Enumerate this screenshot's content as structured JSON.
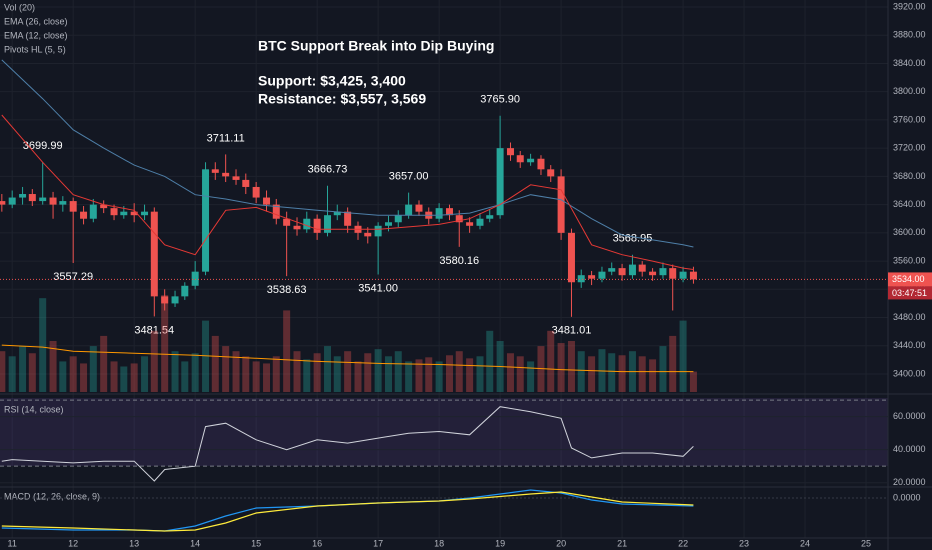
{
  "chart_data": {
    "type": "candlestick",
    "up_color": "#26a69a",
    "down_color": "#ef5350",
    "x": [
      10.83,
      11,
      11.17,
      11.33,
      11.5,
      11.67,
      11.83,
      12,
      12.17,
      12.33,
      12.5,
      12.67,
      12.83,
      13,
      13.17,
      13.33,
      13.5,
      13.67,
      13.83,
      14,
      14.17,
      14.33,
      14.5,
      14.67,
      14.83,
      15,
      15.17,
      15.33,
      15.5,
      15.67,
      15.83,
      16,
      16.17,
      16.33,
      16.5,
      16.67,
      16.83,
      17,
      17.17,
      17.33,
      17.5,
      17.67,
      17.83,
      18,
      18.17,
      18.33,
      18.5,
      18.67,
      18.83,
      19,
      19.17,
      19.33,
      19.5,
      19.67,
      19.83,
      20,
      20.17,
      20.33,
      20.5,
      20.67,
      20.83,
      21,
      21.17,
      21.33,
      21.5,
      21.67,
      21.83,
      22,
      22.17
    ],
    "open": [
      3645,
      3640,
      3650,
      3655,
      3645,
      3650,
      3640,
      3645,
      3630,
      3620,
      3640,
      3635,
      3625,
      3630,
      3625,
      3630,
      3510,
      3500,
      3510,
      3525,
      3545,
      3690,
      3685,
      3680,
      3675,
      3665,
      3650,
      3640,
      3620,
      3610,
      3605,
      3620,
      3600,
      3625,
      3630,
      3610,
      3600,
      3595,
      3610,
      3615,
      3625,
      3640,
      3630,
      3620,
      3635,
      3625,
      3615,
      3610,
      3620,
      3625,
      3720,
      3710,
      3700,
      3705,
      3690,
      3680,
      3600,
      3530,
      3540,
      3535,
      3545,
      3550,
      3540,
      3555,
      3545,
      3540,
      3550,
      3535,
      3545
    ],
    "high": [
      3655,
      3660,
      3665,
      3662,
      3699.99,
      3658,
      3652,
      3650,
      3638,
      3648,
      3646,
      3640,
      3638,
      3642,
      3640,
      3636,
      3520,
      3518,
      3530,
      3560,
      3700,
      3700,
      3711.11,
      3690,
      3684,
      3672,
      3660,
      3648,
      3630,
      3622,
      3630,
      3626,
      3666.73,
      3640,
      3636,
      3616,
      3608,
      3615,
      3624,
      3632,
      3657,
      3646,
      3636,
      3642,
      3640,
      3632,
      3622,
      3628,
      3634,
      3765.9,
      3728,
      3716,
      3712,
      3710,
      3696,
      3690,
      3606,
      3548,
      3546,
      3552,
      3558,
      3556,
      3568.95,
      3560,
      3550,
      3558,
      3555,
      3552,
      3552
    ],
    "low": [
      3630,
      3635,
      3640,
      3638,
      3640,
      3620,
      3630,
      3557.29,
      3612,
      3615,
      3628,
      3618,
      3620,
      3615,
      3618,
      3481.54,
      3490,
      3495,
      3505,
      3520,
      3540,
      3675,
      3672,
      3668,
      3655,
      3642,
      3630,
      3612,
      3538.63,
      3596,
      3600,
      3590,
      3595,
      3618,
      3600,
      3590,
      3585,
      3541,
      3602,
      3608,
      3620,
      3624,
      3612,
      3615,
      3618,
      3580.16,
      3600,
      3605,
      3615,
      3620,
      3702,
      3692,
      3695,
      3682,
      3672,
      3590,
      3481.01,
      3522,
      3526,
      3530,
      3540,
      3532,
      3535,
      3538,
      3532,
      3535,
      3490,
      3530,
      3528
    ],
    "close": [
      3640,
      3650,
      3655,
      3645,
      3650,
      3640,
      3645,
      3630,
      3620,
      3640,
      3635,
      3625,
      3630,
      3625,
      3630,
      3510,
      3500,
      3510,
      3525,
      3545,
      3690,
      3685,
      3680,
      3675,
      3665,
      3650,
      3640,
      3620,
      3610,
      3605,
      3620,
      3600,
      3625,
      3630,
      3610,
      3600,
      3595,
      3610,
      3615,
      3625,
      3640,
      3630,
      3620,
      3635,
      3625,
      3615,
      3610,
      3620,
      3625,
      3720,
      3710,
      3700,
      3705,
      3690,
      3680,
      3600,
      3530,
      3540,
      3535,
      3545,
      3550,
      3540,
      3555,
      3545,
      3540,
      3550,
      3535,
      3545,
      3534
    ],
    "xlim": [
      10.8,
      25.36
    ],
    "xticks": [
      11,
      12,
      13,
      14,
      15,
      16,
      17,
      18,
      19,
      20,
      21,
      22,
      23,
      24,
      25
    ],
    "ylim": [
      3374.5,
      3929.9
    ],
    "yticks": [
      {
        "value": 3400,
        "label": "3400.00"
      },
      {
        "value": 3440,
        "label": "3440.00"
      },
      {
        "value": 3480,
        "label": "3480.00"
      },
      {
        "value": 3520,
        "label": "3520.00"
      },
      {
        "value": 3560,
        "label": "3560.00"
      },
      {
        "value": 3600,
        "label": "3600.00"
      },
      {
        "value": 3640,
        "label": "3640.00"
      },
      {
        "value": 3680,
        "label": "3680.00"
      },
      {
        "value": 3720,
        "label": "3720.00"
      },
      {
        "value": 3760,
        "label": "3760.00"
      },
      {
        "value": 3800,
        "label": "3800.00"
      },
      {
        "value": 3840,
        "label": "3840.00"
      },
      {
        "value": 3880,
        "label": "3880.00"
      },
      {
        "value": 3920,
        "label": "3920.00"
      }
    ],
    "grid": true,
    "last_price": {
      "value": 3534,
      "label": "3534.00"
    },
    "countdown": "03:47:51",
    "annotations": [
      "BTC Support Break into Dip Buying",
      "Support: $3,425, 3,400",
      "Resistance: $3,557, 3,569"
    ],
    "volume": {
      "name": "Vol (20)",
      "ylim": [
        0,
        100
      ],
      "values": [
        40,
        35,
        45,
        38,
        92,
        50,
        30,
        35,
        28,
        45,
        55,
        30,
        25,
        28,
        35,
        60,
        95,
        40,
        30,
        38,
        70,
        55,
        45,
        40,
        35,
        30,
        28,
        35,
        80,
        40,
        32,
        38,
        45,
        35,
        40,
        30,
        38,
        42,
        35,
        40,
        30,
        32,
        34,
        30,
        36,
        40,
        33,
        35,
        60,
        50,
        38,
        35,
        30,
        45,
        60,
        48,
        50,
        40,
        35,
        42,
        38,
        36,
        40,
        35,
        32,
        45,
        55,
        70,
        20
      ],
      "ma": {
        "color": "#ff9800",
        "x": [
          10.83,
          11.5,
          12,
          13,
          14,
          15,
          16,
          17,
          18,
          19,
          20,
          21,
          22.17
        ],
        "values": [
          46,
          44,
          40,
          38,
          36,
          33,
          30,
          28,
          27,
          25,
          22,
          20,
          20
        ]
      }
    },
    "overlays": [
      {
        "name": "EMA (26, close)",
        "color": "#4e7fa8",
        "x": [
          10.83,
          11.5,
          12,
          12.5,
          13,
          13.5,
          14,
          14.5,
          15,
          16,
          17,
          18,
          18.5,
          19,
          19.5,
          20,
          20.5,
          21,
          21.5,
          22,
          22.17
        ],
        "values": [
          3845,
          3790,
          3746,
          3720,
          3696,
          3680,
          3654,
          3648,
          3640,
          3632,
          3625,
          3625,
          3628,
          3640,
          3654,
          3647,
          3620,
          3597,
          3590,
          3583,
          3580
        ]
      },
      {
        "name": "EMA (12, close)",
        "color": "#e53935",
        "x": [
          10.83,
          11.5,
          12,
          12.5,
          13,
          13.5,
          14,
          14.5,
          15,
          16,
          17,
          18,
          18.5,
          19,
          19.5,
          20,
          20.5,
          21,
          21.5,
          22,
          22.17
        ],
        "values": [
          3767,
          3700,
          3654,
          3640,
          3632,
          3583,
          3569,
          3632,
          3636,
          3605,
          3605,
          3612,
          3620,
          3640,
          3668,
          3661,
          3583,
          3569,
          3560,
          3550,
          3548
        ]
      }
    ],
    "pivots": {
      "name": "Pivots HL (5, 5)",
      "x": [
        11.5,
        12,
        13.33,
        14.5,
        15.5,
        16.17,
        17,
        17.5,
        18.33,
        19,
        20.17,
        21.17
      ],
      "values": [
        3699.99,
        3557.29,
        3481.54,
        3711.11,
        3538.63,
        3666.73,
        3541,
        3657,
        3580.16,
        3765.9,
        3481.01,
        3568.95
      ],
      "value_labels": [
        "3699.99",
        "3557.29",
        "3481.54",
        "3711.11",
        "3538.63",
        "3666.73",
        "3541.00",
        "3657.00",
        "3580.16",
        "3765.90",
        "3481.01",
        "3568.95"
      ]
    },
    "rsi": {
      "name": "RSI (14, close)",
      "color": "#d1d4dc",
      "ylim": [
        18,
        72.5
      ],
      "bands": [
        30,
        70
      ],
      "yticks": [
        {
          "value": 20,
          "label": "20.0000"
        },
        {
          "value": 40,
          "label": "40.0000"
        },
        {
          "value": 60,
          "label": "60.0000"
        }
      ],
      "x": [
        10.83,
        11,
        11.5,
        12,
        12.5,
        13,
        13.33,
        13.5,
        14,
        14.17,
        14.5,
        15,
        15.5,
        16,
        16.5,
        17,
        17.5,
        18,
        18.5,
        19,
        19.5,
        20,
        20.17,
        20.5,
        21,
        21.5,
        22,
        22.17
      ],
      "values": [
        33,
        34,
        33,
        32,
        33,
        33,
        21,
        28,
        30,
        54,
        56,
        46,
        40,
        46,
        44,
        47,
        50,
        51,
        49,
        66,
        63,
        59,
        41,
        35,
        38,
        38,
        36,
        42
      ]
    },
    "macd": {
      "name": "MACD (12, 26, close, 9)",
      "ylim": [
        -40,
        10
      ],
      "yticks": [
        {
          "value": 0,
          "label": "0.0000"
        }
      ],
      "x": [
        10.83,
        12,
        13,
        13.5,
        14,
        14.5,
        15,
        16,
        17,
        18,
        18.5,
        19.5,
        20,
        20.5,
        21,
        22.17
      ],
      "macd": [
        -30,
        -32,
        -32,
        -33,
        -28,
        -18,
        -10,
        -8,
        -5,
        -3,
        0,
        8,
        5,
        -2,
        -6,
        -8
      ],
      "signal": [
        -28,
        -30,
        -32,
        -33,
        -32,
        -25,
        -15,
        -8,
        -5,
        -3,
        -1,
        4,
        6,
        1,
        -4,
        -7
      ],
      "macd_color": "#2196f3",
      "signal_color": "#ffeb3b"
    }
  }
}
